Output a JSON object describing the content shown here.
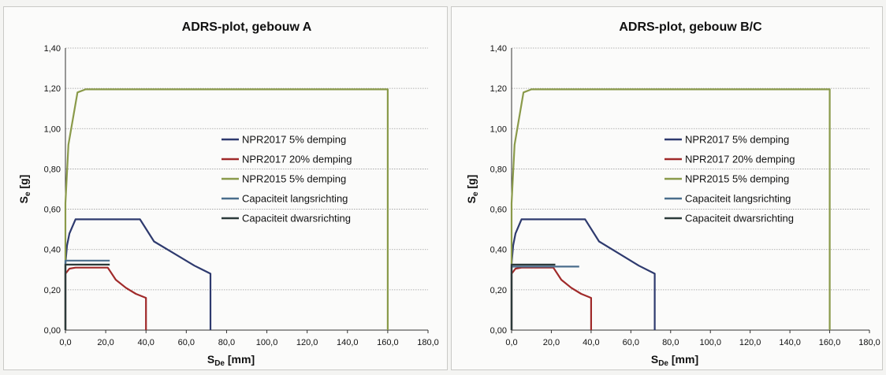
{
  "chart_data": [
    {
      "type": "line",
      "title": "ADRS-plot, gebouw A",
      "ylabel": "S",
      "ylabel_sub": "e",
      "ylabel_unit": " [g]",
      "xlabel": "S",
      "xlabel_sub": "De",
      "xlabel_unit": " [mm]",
      "xlim": [
        0,
        180
      ],
      "ylim": [
        0,
        1.4
      ],
      "xticks": [
        "0,0",
        "20,0",
        "40,0",
        "60,0",
        "80,0",
        "100,0",
        "120,0",
        "140,0",
        "160,0",
        "180,0"
      ],
      "yticks": [
        "0,00",
        "0,20",
        "0,40",
        "0,60",
        "0,80",
        "1,00",
        "1,20",
        "1,40"
      ],
      "grid": true,
      "legend_position": "center-right",
      "series": [
        {
          "name": "NPR2017 5% demping",
          "color": "#2e3a6e",
          "points": [
            [
              0,
              0
            ],
            [
              0,
              0.33
            ],
            [
              0.8,
              0.42
            ],
            [
              2,
              0.48
            ],
            [
              5,
              0.55
            ],
            [
              37,
              0.55
            ],
            [
              44,
              0.44
            ],
            [
              54,
              0.38
            ],
            [
              64,
              0.32
            ],
            [
              72,
              0.28
            ],
            [
              72,
              0
            ]
          ]
        },
        {
          "name": "NPR2017 20% demping",
          "color": "#a02a2a",
          "points": [
            [
              0,
              0
            ],
            [
              0,
              0.28
            ],
            [
              2,
              0.305
            ],
            [
              5,
              0.31
            ],
            [
              21,
              0.31
            ],
            [
              25,
              0.25
            ],
            [
              30,
              0.21
            ],
            [
              35,
              0.18
            ],
            [
              40,
              0.16
            ],
            [
              40,
              0
            ]
          ]
        },
        {
          "name": "NPR2015 5% demping",
          "color": "#8a9a4a",
          "points": [
            [
              0,
              0
            ],
            [
              0,
              0.63
            ],
            [
              1.5,
              0.92
            ],
            [
              6,
              1.18
            ],
            [
              10,
              1.195
            ],
            [
              160,
              1.195
            ],
            [
              160,
              0
            ]
          ]
        },
        {
          "name": "Capaciteit langsrichting",
          "color": "#4a6d8c",
          "points": [
            [
              0,
              0
            ],
            [
              0,
              0.345
            ],
            [
              22,
              0.345
            ]
          ]
        },
        {
          "name": "Capaciteit dwarsrichting",
          "color": "#2c3a3a",
          "points": [
            [
              0,
              0
            ],
            [
              0,
              0.325
            ],
            [
              22,
              0.325
            ]
          ]
        }
      ]
    },
    {
      "type": "line",
      "title": "ADRS-plot, gebouw B/C",
      "ylabel": "S",
      "ylabel_sub": "e",
      "ylabel_unit": " [g]",
      "xlabel": "S",
      "xlabel_sub": "De",
      "xlabel_unit": " [mm]",
      "xlim": [
        0,
        180
      ],
      "ylim": [
        0,
        1.4
      ],
      "xticks": [
        "0,0",
        "20,0",
        "40,0",
        "60,0",
        "80,0",
        "100,0",
        "120,0",
        "140,0",
        "160,0",
        "180,0"
      ],
      "yticks": [
        "0,00",
        "0,20",
        "0,40",
        "0,60",
        "0,80",
        "1,00",
        "1,20",
        "1,40"
      ],
      "grid": true,
      "legend_position": "center-right",
      "series": [
        {
          "name": "NPR2017 5% demping",
          "color": "#2e3a6e",
          "points": [
            [
              0,
              0
            ],
            [
              0,
              0.33
            ],
            [
              0.8,
              0.42
            ],
            [
              2,
              0.48
            ],
            [
              5,
              0.55
            ],
            [
              37,
              0.55
            ],
            [
              44,
              0.44
            ],
            [
              54,
              0.38
            ],
            [
              64,
              0.32
            ],
            [
              72,
              0.28
            ],
            [
              72,
              0
            ]
          ]
        },
        {
          "name": "NPR2017 20% demping",
          "color": "#a02a2a",
          "points": [
            [
              0,
              0
            ],
            [
              0,
              0.28
            ],
            [
              2,
              0.305
            ],
            [
              5,
              0.31
            ],
            [
              21,
              0.31
            ],
            [
              25,
              0.25
            ],
            [
              30,
              0.21
            ],
            [
              35,
              0.18
            ],
            [
              40,
              0.16
            ],
            [
              40,
              0
            ]
          ]
        },
        {
          "name": "NPR2015 5% demping",
          "color": "#8a9a4a",
          "points": [
            [
              0,
              0
            ],
            [
              0,
              0.63
            ],
            [
              1.5,
              0.92
            ],
            [
              6,
              1.18
            ],
            [
              10,
              1.195
            ],
            [
              160,
              1.195
            ],
            [
              160,
              0
            ]
          ]
        },
        {
          "name": "Capaciteit langsrichting",
          "color": "#4a6d8c",
          "points": [
            [
              0,
              0
            ],
            [
              0,
              0.315
            ],
            [
              34,
              0.315
            ]
          ]
        },
        {
          "name": "Capaciteit dwarsrichting",
          "color": "#2c3a3a",
          "points": [
            [
              0,
              0
            ],
            [
              0,
              0.325
            ],
            [
              22,
              0.325
            ]
          ]
        }
      ]
    }
  ]
}
